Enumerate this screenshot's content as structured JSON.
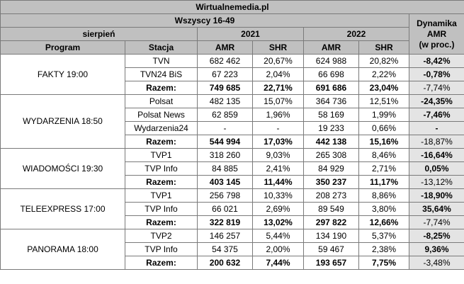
{
  "site": "Wirtualnemedia.pl",
  "group": "Wszyscy 16-49",
  "period": "sierpień",
  "year_a": "2021",
  "year_b": "2022",
  "dyn_label": [
    "Dynamika",
    "AMR",
    "(w proc.)"
  ],
  "col_program": "Program",
  "col_station": "Stacja",
  "col_amr": "AMR",
  "col_shr": "SHR",
  "total_label": "Razem:",
  "programs": [
    {
      "name": "FAKTY 19:00",
      "rows": [
        {
          "station": "TVN",
          "amr21": "682 462",
          "shr21": "20,67%",
          "amr22": "624 988",
          "shr22": "20,82%",
          "dyn": "-8,42%"
        },
        {
          "station": "TVN24 BiS",
          "amr21": "67 223",
          "shr21": "2,04%",
          "amr22": "66 698",
          "shr22": "2,22%",
          "dyn": "-0,78%"
        }
      ],
      "total": {
        "amr21": "749 685",
        "shr21": "22,71%",
        "amr22": "691 686",
        "shr22": "23,04%",
        "dyn": "-7,74%"
      }
    },
    {
      "name": "WYDARZENIA 18:50",
      "rows": [
        {
          "station": "Polsat",
          "amr21": "482 135",
          "shr21": "15,07%",
          "amr22": "364 736",
          "shr22": "12,51%",
          "dyn": "-24,35%"
        },
        {
          "station": "Polsat News",
          "amr21": "62 859",
          "shr21": "1,96%",
          "amr22": "58 169",
          "shr22": "1,99%",
          "dyn": "-7,46%"
        },
        {
          "station": "Wydarzenia24",
          "amr21": "-",
          "shr21": "-",
          "amr22": "19 233",
          "shr22": "0,66%",
          "dyn": "-"
        }
      ],
      "total": {
        "amr21": "544 994",
        "shr21": "17,03%",
        "amr22": "442 138",
        "shr22": "15,16%",
        "dyn": "-18,87%"
      }
    },
    {
      "name": "WIADOMOŚCI 19:30",
      "rows": [
        {
          "station": "TVP1",
          "amr21": "318 260",
          "shr21": "9,03%",
          "amr22": "265 308",
          "shr22": "8,46%",
          "dyn": "-16,64%"
        },
        {
          "station": "TVP Info",
          "amr21": "84 885",
          "shr21": "2,41%",
          "amr22": "84 929",
          "shr22": "2,71%",
          "dyn": "0,05%"
        }
      ],
      "total": {
        "amr21": "403 145",
        "shr21": "11,44%",
        "amr22": "350 237",
        "shr22": "11,17%",
        "dyn": "-13,12%"
      }
    },
    {
      "name": "TELEEXPRESS 17:00",
      "rows": [
        {
          "station": "TVP1",
          "amr21": "256 798",
          "shr21": "10,33%",
          "amr22": "208 273",
          "shr22": "8,86%",
          "dyn": "-18,90%"
        },
        {
          "station": "TVP Info",
          "amr21": "66 021",
          "shr21": "2,69%",
          "amr22": "89 549",
          "shr22": "3,80%",
          "dyn": "35,64%"
        }
      ],
      "total": {
        "amr21": "322 819",
        "shr21": "13,02%",
        "amr22": "297 822",
        "shr22": "12,66%",
        "dyn": "-7,74%"
      }
    },
    {
      "name": "PANORAMA 18:00",
      "rows": [
        {
          "station": "TVP2",
          "amr21": "146 257",
          "shr21": "5,44%",
          "amr22": "134 190",
          "shr22": "5,37%",
          "dyn": "-8,25%"
        },
        {
          "station": "TVP Info",
          "amr21": "54 375",
          "shr21": "2,00%",
          "amr22": "59 467",
          "shr22": "2,38%",
          "dyn": "9,36%"
        }
      ],
      "total": {
        "amr21": "200 632",
        "shr21": "7,44%",
        "amr22": "193 657",
        "shr22": "7,75%",
        "dyn": "-3,48%"
      }
    }
  ]
}
